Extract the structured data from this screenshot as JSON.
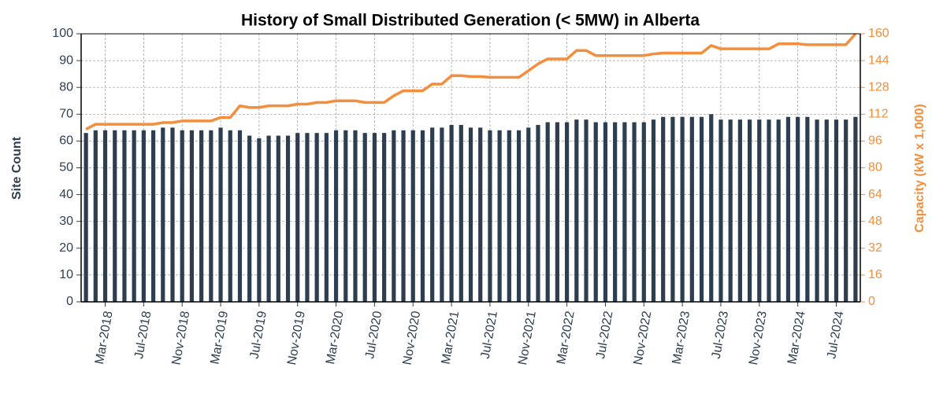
{
  "chart_data": {
    "type": "bar",
    "title": "History of Small Distributed Generation (< 5MW) in Alberta",
    "ylabel": "Site Count",
    "y2label": "Capacity (kW x 1,000)",
    "categories": [
      null,
      null,
      "Mar-2018",
      null,
      null,
      null,
      "Jul-2018",
      null,
      null,
      null,
      "Nov-2018",
      null,
      null,
      null,
      "Mar-2019",
      null,
      null,
      null,
      "Jul-2019",
      null,
      null,
      null,
      "Nov-2019",
      null,
      null,
      null,
      "Mar-2020",
      null,
      null,
      null,
      "Jul-2020",
      null,
      null,
      null,
      "Nov-2020",
      null,
      null,
      null,
      "Mar-2021",
      null,
      null,
      null,
      "Jul-2021",
      null,
      null,
      null,
      "Nov-2021",
      null,
      null,
      null,
      "Mar-2022",
      null,
      null,
      null,
      "Jul-2022",
      null,
      null,
      null,
      "Nov-2022",
      null,
      null,
      null,
      "Mar-2023",
      null,
      null,
      null,
      "Jul-2023",
      null,
      null,
      null,
      "Nov-2023",
      null,
      null,
      null,
      "Mar-2024",
      null,
      null,
      null,
      "Jul-2024",
      null,
      null
    ],
    "series": [
      {
        "type": "bar",
        "color": "#2d3e50",
        "values": [
          63,
          64,
          64,
          64,
          64,
          64,
          64,
          64,
          65,
          65,
          64,
          64,
          64,
          64,
          65,
          64,
          64,
          62,
          61,
          62,
          62,
          62,
          63,
          63,
          63,
          63,
          64,
          64,
          64,
          63,
          63,
          63,
          64,
          64,
          64,
          64,
          65,
          65,
          66,
          66,
          65,
          65,
          64,
          64,
          64,
          64,
          65,
          66,
          67,
          67,
          67,
          68,
          68,
          67,
          67,
          67,
          67,
          67,
          67,
          68,
          69,
          69,
          69,
          69,
          69,
          70,
          68,
          68,
          68,
          68,
          68,
          68,
          68,
          69,
          69,
          69,
          68,
          68,
          68,
          68,
          69
        ]
      },
      {
        "type": "line",
        "color": "#f28e3c",
        "axis": "y2",
        "values": [
          103,
          106,
          106,
          106,
          106,
          106,
          106,
          106,
          107,
          107,
          108,
          108,
          108,
          108,
          110,
          110,
          117,
          116,
          116,
          117,
          117,
          117,
          118,
          118,
          119,
          119,
          120,
          120,
          120,
          119,
          119,
          119,
          123,
          126,
          126,
          126,
          130,
          130,
          135,
          135,
          134.5,
          134.5,
          134,
          134,
          134,
          134,
          138,
          142,
          145,
          145,
          145,
          150,
          150,
          147,
          147,
          147,
          147,
          147,
          147,
          148,
          148.5,
          148.5,
          148.5,
          148.5,
          148.5,
          153,
          151,
          151,
          151,
          151,
          151,
          151,
          154,
          154,
          154,
          153.5,
          153.5,
          153.5,
          153.5,
          153.5,
          160
        ]
      }
    ],
    "ylim": [
      0,
      100
    ],
    "yticks": [
      0,
      10,
      20,
      30,
      40,
      50,
      60,
      70,
      80,
      90,
      100
    ],
    "y2lim": [
      0,
      160
    ],
    "y2ticks": [
      0,
      16,
      32,
      48,
      64,
      80,
      96,
      112,
      128,
      144,
      160
    ],
    "grid": true
  }
}
